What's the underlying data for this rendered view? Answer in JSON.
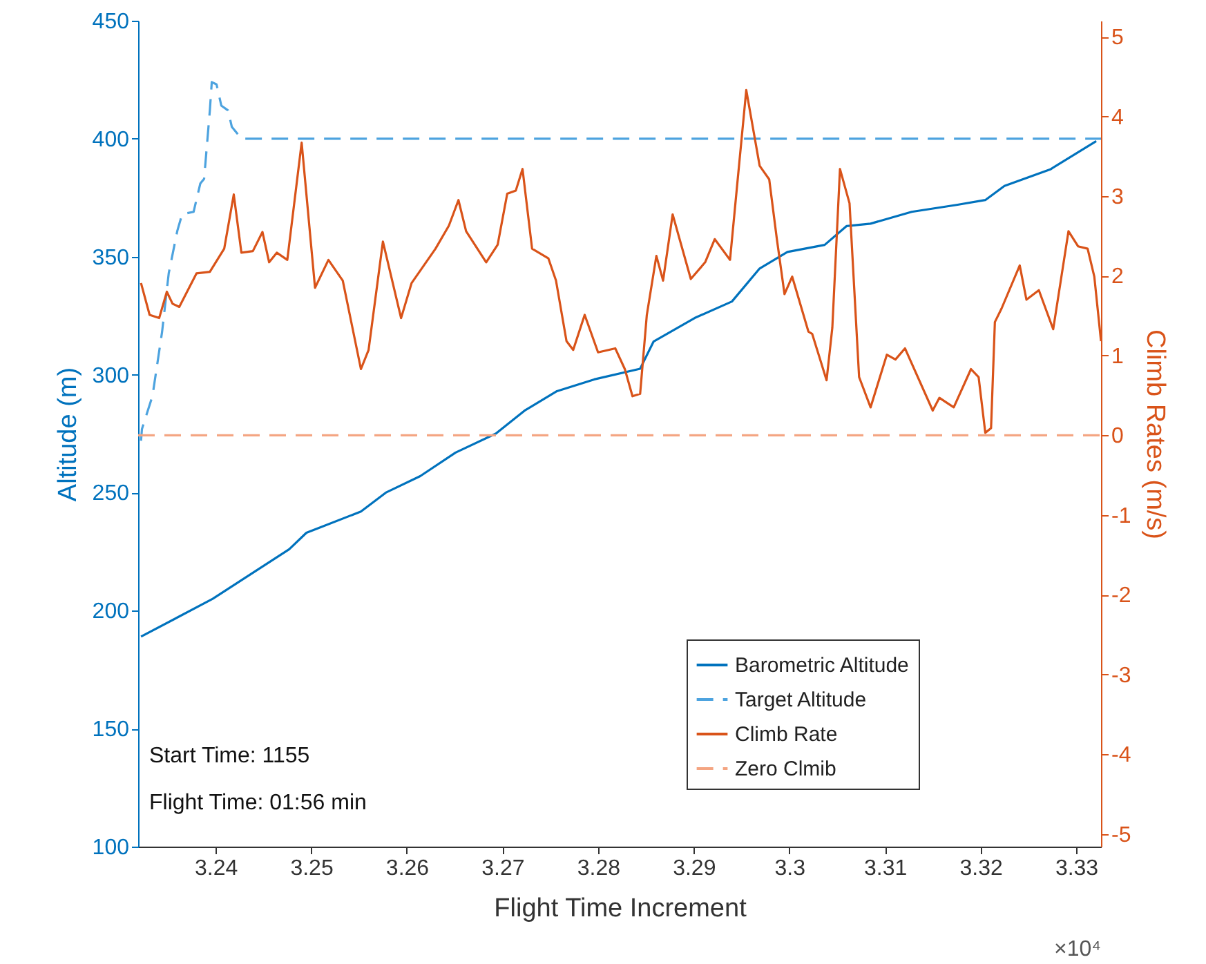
{
  "chart_data": {
    "type": "line",
    "xlabel": "Flight Time Increment",
    "ylabel": "Altitude (m)",
    "y2label": "Climb Rates (m/s)",
    "xlim": [
      3.2319,
      3.3326
    ],
    "xticks": [
      3.24,
      3.25,
      3.26,
      3.27,
      3.28,
      3.29,
      3.3,
      3.31,
      3.32,
      3.33
    ],
    "ylim": [
      100,
      450
    ],
    "yticks": [
      100,
      150,
      200,
      250,
      300,
      350,
      400,
      450
    ],
    "y2lim": [
      -5.16,
      5.2
    ],
    "y2ticks": [
      -5,
      -4,
      -3,
      -2,
      -1,
      0,
      1,
      2,
      3,
      4,
      5
    ],
    "legend": "bottom right",
    "grid": false,
    "annotations": [
      "Start Time: 1155",
      "Flight Time: 01:56 min",
      "×10⁴"
    ],
    "series": [
      {
        "name": "Barometric Altitude",
        "color": "#0072bd",
        "line_style": "solid",
        "x": [
          3.2322,
          3.2397,
          3.2477,
          3.2495,
          3.2552,
          3.2578,
          3.2614,
          3.2651,
          3.2693,
          3.2724,
          3.2757,
          3.2796,
          3.2844,
          3.2858,
          3.2901,
          3.294,
          3.2969,
          3.2998,
          3.3037,
          3.306,
          3.3085,
          3.3128,
          3.3176,
          3.3205,
          3.3225,
          3.3273,
          3.3321
        ],
        "values": [
          189,
          205,
          226,
          233,
          242,
          250,
          257,
          267,
          275,
          285,
          293,
          298,
          302.5,
          314,
          324,
          331,
          345,
          352,
          355,
          363,
          364,
          369,
          372,
          374,
          380,
          387,
          399
        ]
      },
      {
        "name": "Target Altitude",
        "color": "#4da3df",
        "line_style": "dashed",
        "x": [
          3.2322,
          3.2323,
          3.2334,
          3.2344,
          3.2351,
          3.236,
          3.2365,
          3.2377,
          3.2384,
          3.2388,
          3.2394,
          3.2396,
          3.2401,
          3.2406,
          3.2413,
          3.2417,
          3.2427,
          3.3326
        ],
        "values": [
          272,
          277,
          291,
          318,
          343,
          361,
          368,
          369,
          381,
          383,
          412,
          424,
          423,
          414,
          412,
          405,
          400,
          400
        ]
      },
      {
        "name": "Climb Rate",
        "color": "#d95319",
        "line_style": "solid",
        "axis": "y2",
        "x": [
          3.2322,
          3.2331,
          3.2341,
          3.2349,
          3.2355,
          3.2362,
          3.238,
          3.2394,
          3.2409,
          3.2419,
          3.2427,
          3.2439,
          3.2449,
          3.2456,
          3.2464,
          3.2475,
          3.249,
          3.2504,
          3.2518,
          3.2533,
          3.2552,
          3.256,
          3.2575,
          3.2594,
          3.2605,
          3.263,
          3.2644,
          3.2654,
          3.2662,
          3.2683,
          3.2695,
          3.2705,
          3.2714,
          3.2721,
          3.2731,
          3.2748,
          3.2756,
          3.2767,
          3.2774,
          3.2786,
          3.28,
          3.2818,
          3.2828,
          3.2836,
          3.2844,
          3.2851,
          3.2861,
          3.2868,
          3.2878,
          3.2897,
          3.2912,
          3.2922,
          3.2938,
          3.2945,
          3.2955,
          3.2969,
          3.2979,
          3.2987,
          3.2995,
          3.3003,
          3.302,
          3.3024,
          3.3039,
          3.3045,
          3.3053,
          3.3063,
          3.3073,
          3.3085,
          3.3102,
          3.3111,
          3.3121,
          3.315,
          3.3157,
          3.3172,
          3.319,
          3.3198,
          3.3205,
          3.3211,
          3.3215,
          3.3222,
          3.3241,
          3.3248,
          3.3261,
          3.3276,
          3.3292,
          3.3302,
          3.3312,
          3.3319,
          3.3326
        ],
        "values": [
          1.91,
          1.51,
          1.47,
          1.8,
          1.65,
          1.61,
          2.03,
          2.05,
          2.34,
          3.02,
          2.29,
          2.31,
          2.55,
          2.17,
          2.29,
          2.2,
          3.67,
          1.85,
          2.2,
          1.94,
          0.83,
          1.07,
          2.43,
          1.47,
          1.91,
          2.34,
          2.63,
          2.95,
          2.56,
          2.17,
          2.39,
          3.03,
          3.07,
          3.34,
          2.34,
          2.22,
          1.94,
          1.18,
          1.07,
          1.51,
          1.04,
          1.09,
          0.83,
          0.49,
          0.52,
          1.51,
          2.25,
          1.94,
          2.77,
          1.96,
          2.17,
          2.46,
          2.2,
          3.08,
          4.33,
          3.38,
          3.21,
          2.46,
          1.77,
          1.99,
          1.3,
          1.27,
          0.69,
          1.35,
          3.34,
          2.91,
          0.73,
          0.35,
          1.01,
          0.95,
          1.09,
          0.31,
          0.47,
          0.35,
          0.83,
          0.73,
          0.03,
          0.09,
          1.42,
          1.59,
          2.13,
          1.7,
          1.82,
          1.33,
          2.56,
          2.37,
          2.34,
          1.99,
          1.18
        ]
      },
      {
        "name": "Zero Clmib",
        "color": "#f4a582",
        "line_style": "dashed",
        "axis": "y2",
        "x": [
          3.2319,
          3.3326
        ],
        "values": [
          0,
          0
        ]
      }
    ]
  }
}
